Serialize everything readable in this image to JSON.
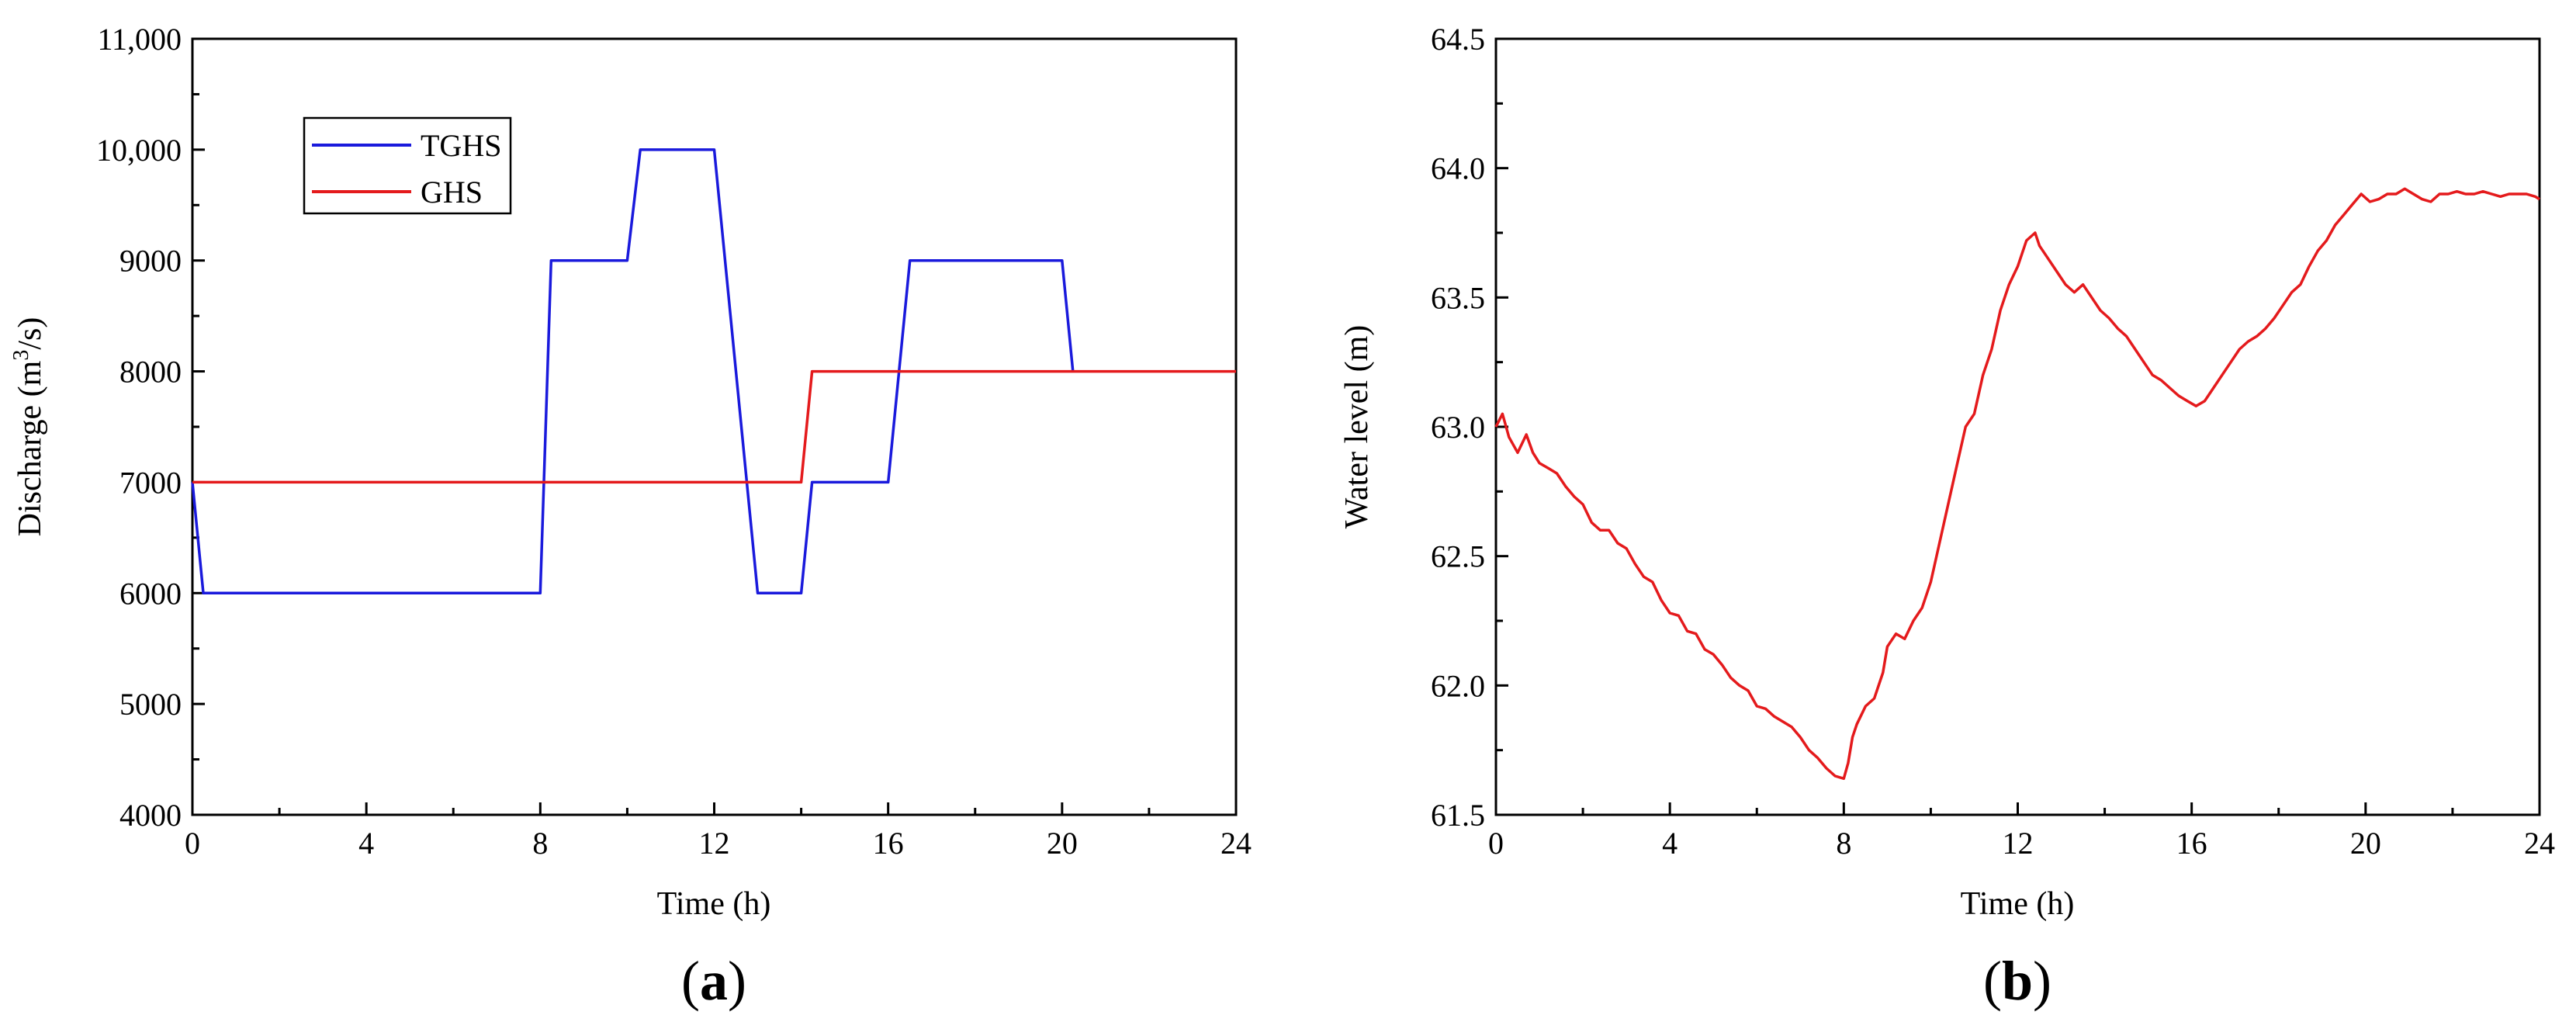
{
  "colors": {
    "tghs": "#1a1adc",
    "ghs": "#e41a1c",
    "water": "#e41a1c",
    "axis": "#000000"
  },
  "chart_data": [
    {
      "type": "line",
      "panel_label": "a",
      "xlabel": "Time (h)",
      "ylabel": {
        "prefix": "Discharge (m",
        "sup": "3",
        "suffix": "/s)"
      },
      "xlim": [
        0,
        24
      ],
      "ylim": [
        4000,
        11000
      ],
      "xticks": [
        0,
        4,
        8,
        12,
        16,
        20,
        24
      ],
      "xtick_labels": [
        "0",
        "4",
        "8",
        "12",
        "16",
        "20",
        "24"
      ],
      "yticks": [
        4000,
        5000,
        6000,
        7000,
        8000,
        9000,
        10000,
        11000
      ],
      "ytick_labels": [
        "4000",
        "5000",
        "6000",
        "7000",
        "8000",
        "9000",
        "10,000",
        "11,000"
      ],
      "legend_position": "upper-left",
      "series": [
        {
          "name": "TGHS",
          "x": [
            0,
            0.25,
            8,
            8.25,
            10,
            10.3,
            12,
            13.0,
            14.0,
            14.25,
            16.0,
            16.5,
            20.0,
            20.25
          ],
          "y": [
            7000,
            6000,
            6000,
            9000,
            9000,
            10000,
            10000,
            6000,
            6000,
            7000,
            7000,
            9000,
            9000,
            8000
          ]
        },
        {
          "name": "GHS",
          "x": [
            0,
            14.0,
            14.25,
            24
          ],
          "y": [
            7000,
            7000,
            8000,
            8000
          ]
        }
      ]
    },
    {
      "type": "line",
      "panel_label": "b",
      "xlabel": "Time (h)",
      "ylabel": "Water level (m)",
      "xlim": [
        0,
        24
      ],
      "ylim": [
        61.5,
        64.5
      ],
      "xticks": [
        0,
        4,
        8,
        12,
        16,
        20,
        24
      ],
      "xtick_labels": [
        "0",
        "4",
        "8",
        "12",
        "16",
        "20",
        "24"
      ],
      "yticks": [
        61.5,
        62.0,
        62.5,
        63.0,
        63.5,
        64.0,
        64.5
      ],
      "ytick_labels": [
        "61.5",
        "62.0",
        "62.5",
        "63.0",
        "63.5",
        "64.0",
        "64.5"
      ],
      "series": [
        {
          "x": [
            0,
            0.15,
            0.3,
            0.5,
            0.7,
            0.85,
            1.0,
            1.2,
            1.4,
            1.6,
            1.8,
            2.0,
            2.2,
            2.4,
            2.6,
            2.8,
            3.0,
            3.2,
            3.4,
            3.6,
            3.8,
            4.0,
            4.2,
            4.4,
            4.6,
            4.8,
            5.0,
            5.2,
            5.4,
            5.6,
            5.8,
            6.0,
            6.2,
            6.4,
            6.6,
            6.8,
            7.0,
            7.2,
            7.4,
            7.6,
            7.8,
            8.0,
            8.1,
            8.2,
            8.3,
            8.5,
            8.7,
            8.9,
            9.0,
            9.2,
            9.4,
            9.6,
            9.8,
            10.0,
            10.2,
            10.4,
            10.6,
            10.8,
            11.0,
            11.2,
            11.4,
            11.6,
            11.8,
            12.0,
            12.2,
            12.4,
            12.5,
            12.7,
            12.9,
            13.1,
            13.3,
            13.5,
            13.7,
            13.9,
            14.1,
            14.3,
            14.5,
            14.7,
            14.9,
            15.1,
            15.3,
            15.5,
            15.7,
            15.9,
            16.1,
            16.3,
            16.5,
            16.7,
            16.9,
            17.1,
            17.3,
            17.5,
            17.7,
            17.9,
            18.1,
            18.3,
            18.5,
            18.7,
            18.9,
            19.1,
            19.3,
            19.5,
            19.7,
            19.9,
            20.1,
            20.3,
            20.5,
            20.7,
            20.9,
            21.1,
            21.3,
            21.5,
            21.7,
            21.9,
            22.1,
            22.3,
            22.5,
            22.7,
            22.9,
            23.1,
            23.3,
            23.5,
            23.7,
            23.9,
            24.0
          ],
          "y": [
            63.0,
            63.05,
            62.96,
            62.9,
            62.97,
            62.9,
            62.86,
            62.84,
            62.82,
            62.77,
            62.73,
            62.7,
            62.63,
            62.6,
            62.6,
            62.55,
            62.53,
            62.47,
            62.42,
            62.4,
            62.33,
            62.28,
            62.27,
            62.21,
            62.2,
            62.14,
            62.12,
            62.08,
            62.03,
            62.0,
            61.98,
            61.92,
            61.91,
            61.88,
            61.86,
            61.84,
            61.8,
            61.75,
            61.72,
            61.68,
            61.65,
            61.64,
            61.7,
            61.8,
            61.85,
            61.92,
            61.95,
            62.05,
            62.15,
            62.2,
            62.18,
            62.25,
            62.3,
            62.4,
            62.55,
            62.7,
            62.85,
            63.0,
            63.05,
            63.2,
            63.3,
            63.45,
            63.55,
            63.62,
            63.72,
            63.75,
            63.7,
            63.65,
            63.6,
            63.55,
            63.52,
            63.55,
            63.5,
            63.45,
            63.42,
            63.38,
            63.35,
            63.3,
            63.25,
            63.2,
            63.18,
            63.15,
            63.12,
            63.1,
            63.08,
            63.1,
            63.15,
            63.2,
            63.25,
            63.3,
            63.33,
            63.35,
            63.38,
            63.42,
            63.47,
            63.52,
            63.55,
            63.62,
            63.68,
            63.72,
            63.78,
            63.82,
            63.86,
            63.9,
            63.87,
            63.88,
            63.9,
            63.9,
            63.92,
            63.9,
            63.88,
            63.87,
            63.9,
            63.9,
            63.91,
            63.9,
            63.9,
            63.91,
            63.9,
            63.89,
            63.9,
            63.9,
            63.9,
            63.89,
            63.88
          ]
        }
      ]
    }
  ]
}
